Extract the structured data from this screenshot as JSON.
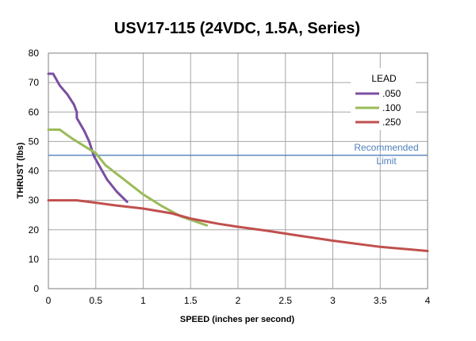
{
  "chart_data": {
    "type": "line",
    "title": "USV17-115 (24VDC, 1.5A, Series)",
    "xlabel": "SPEED (inches per second)",
    "ylabel": "THRUST (lbs)",
    "xlim": [
      0,
      4
    ],
    "ylim": [
      0,
      80
    ],
    "x_ticks": [
      "0",
      "0.5",
      "1",
      "1.5",
      "2",
      "2.5",
      "3",
      "3.5",
      "4"
    ],
    "y_ticks": [
      "0",
      "10",
      "20",
      "30",
      "40",
      "50",
      "60",
      "70",
      "80"
    ],
    "grid": "vertical and horizontal gridlines",
    "legend": {
      "title": "LEAD",
      "placement": "top-right"
    },
    "series": [
      {
        "name": ".050",
        "color": "#7a4fa0",
        "points": [
          [
            0,
            73
          ],
          [
            0.05,
            73
          ],
          [
            0.12,
            69
          ],
          [
            0.2,
            66
          ],
          [
            0.27,
            62.5
          ],
          [
            0.3,
            60
          ],
          [
            0.3,
            58
          ],
          [
            0.38,
            53.5
          ],
          [
            0.43,
            50
          ],
          [
            0.48,
            45
          ],
          [
            0.55,
            41
          ],
          [
            0.62,
            37
          ],
          [
            0.72,
            33
          ],
          [
            0.83,
            29.5
          ]
        ]
      },
      {
        "name": ".100",
        "color": "#9bbb59",
        "points": [
          [
            0,
            54
          ],
          [
            0.12,
            54
          ],
          [
            0.25,
            51
          ],
          [
            0.4,
            48
          ],
          [
            0.5,
            46
          ],
          [
            0.6,
            42
          ],
          [
            0.8,
            37
          ],
          [
            1.0,
            32
          ],
          [
            1.2,
            28
          ],
          [
            1.4,
            24.5
          ],
          [
            1.67,
            21.5
          ]
        ]
      },
      {
        "name": ".250",
        "color": "#c0504d",
        "points": [
          [
            0,
            30
          ],
          [
            0.3,
            30
          ],
          [
            0.5,
            29.2
          ],
          [
            0.7,
            28.3
          ],
          [
            1.0,
            27.2
          ],
          [
            1.3,
            25.6
          ],
          [
            1.5,
            23.8
          ],
          [
            1.8,
            22
          ],
          [
            2.0,
            21
          ],
          [
            2.3,
            19.7
          ],
          [
            2.6,
            18.2
          ],
          [
            3.0,
            16.3
          ],
          [
            3.5,
            14.2
          ],
          [
            4.0,
            12.8
          ]
        ]
      }
    ],
    "reference_line": {
      "y": 45.3,
      "color": "#4f81bd",
      "label_line1": "Recommended",
      "label_line2": "Limit"
    }
  }
}
